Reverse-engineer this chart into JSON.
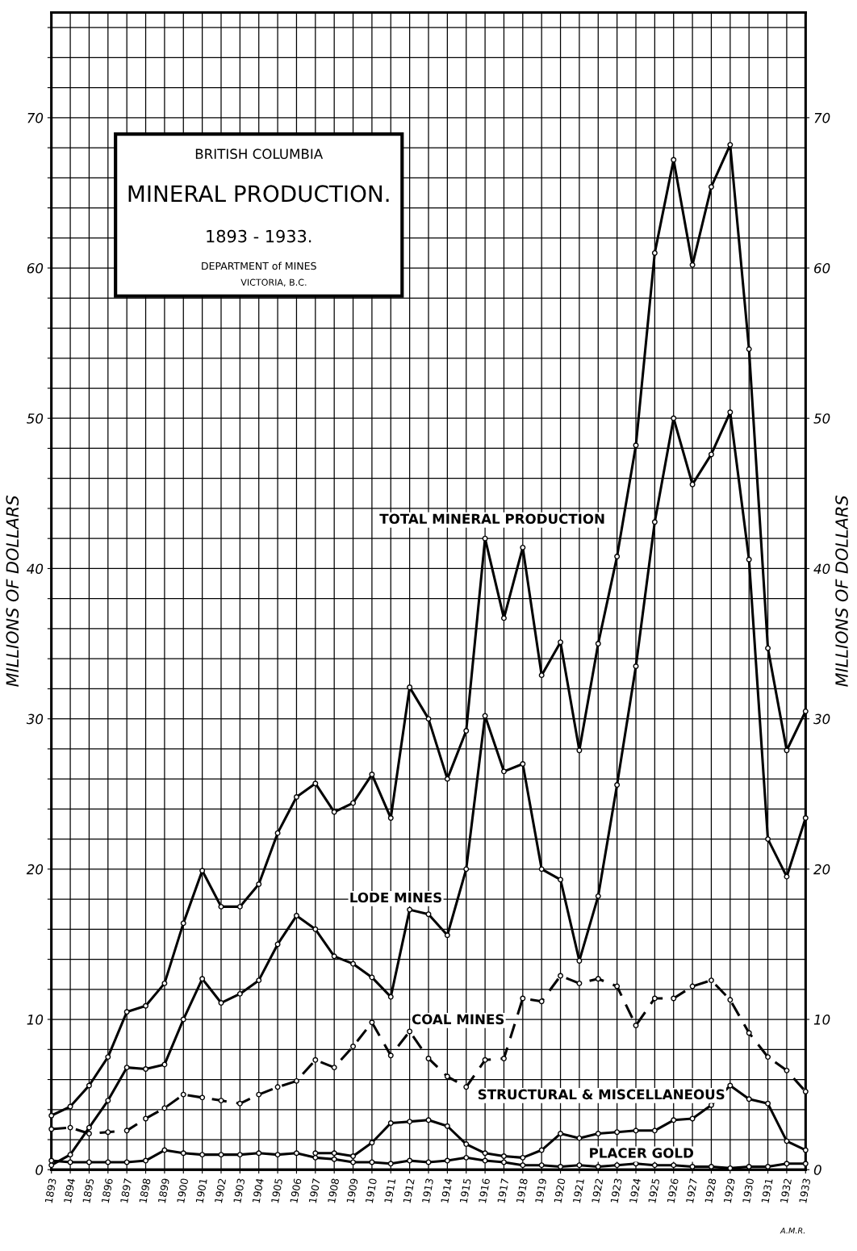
{
  "chart_data": {
    "type": "line",
    "subtitle": "BRITISH COLUMBIA",
    "title": "MINERAL PRODUCTION.",
    "annotations": [
      "1893 - 1933.",
      "DEPARTMENT of MINES",
      "VICTORIA, B.C.",
      "A.M.R."
    ],
    "ylabel": "MILLIONS OF DOLLARS",
    "y2label": "MILLIONS OF DOLLARS",
    "x": [
      1893,
      1894,
      1895,
      1896,
      1897,
      1898,
      1899,
      1900,
      1901,
      1902,
      1903,
      1904,
      1905,
      1906,
      1907,
      1908,
      1909,
      1910,
      1911,
      1912,
      1913,
      1914,
      1915,
      1916,
      1917,
      1918,
      1919,
      1920,
      1921,
      1922,
      1923,
      1924,
      1925,
      1926,
      1927,
      1928,
      1929,
      1930,
      1931,
      1932,
      1933
    ],
    "xlim": [
      1893,
      1933
    ],
    "xticks": [
      1893,
      1894,
      1895,
      1896,
      1897,
      1898,
      1899,
      1900,
      1901,
      1902,
      1903,
      1904,
      1905,
      1906,
      1907,
      1908,
      1909,
      1910,
      1911,
      1912,
      1913,
      1914,
      1915,
      1916,
      1917,
      1918,
      1919,
      1920,
      1921,
      1922,
      1923,
      1924,
      1925,
      1926,
      1927,
      1928,
      1929,
      1930,
      1931,
      1932,
      1933
    ],
    "ylim": [
      0,
      77
    ],
    "yticks": [
      0,
      {
        "value": 2,
        "label": null
      },
      {
        "value": 4,
        "label": null
      },
      {
        "value": 6,
        "label": null
      },
      {
        "value": 8,
        "label": null
      },
      10,
      {
        "value": 12,
        "label": null
      },
      {
        "value": 14,
        "label": null
      },
      {
        "value": 16,
        "label": null
      },
      {
        "value": 18,
        "label": null
      },
      20,
      {
        "value": 22,
        "label": null
      },
      {
        "value": 24,
        "label": null
      },
      {
        "value": 26,
        "label": null
      },
      {
        "value": 28,
        "label": null
      },
      30,
      {
        "value": 32,
        "label": null
      },
      {
        "value": 34,
        "label": null
      },
      {
        "value": 36,
        "label": null
      },
      {
        "value": 38,
        "label": null
      },
      40,
      {
        "value": 42,
        "label": null
      },
      {
        "value": 44,
        "label": null
      },
      {
        "value": 46,
        "label": null
      },
      {
        "value": 48,
        "label": null
      },
      50,
      {
        "value": 52,
        "label": null
      },
      {
        "value": 54,
        "label": null
      },
      {
        "value": 56,
        "label": null
      },
      {
        "value": 58,
        "label": null
      },
      60,
      {
        "value": 62,
        "label": null
      },
      {
        "value": 64,
        "label": null
      },
      {
        "value": 66,
        "label": null
      },
      {
        "value": 68,
        "label": null
      },
      70,
      {
        "value": 72,
        "label": null
      },
      {
        "value": 74,
        "label": null
      },
      {
        "value": 76,
        "label": null
      }
    ],
    "y2lim": [
      0,
      77
    ],
    "y2ticks": [
      0,
      10,
      20,
      30,
      40,
      50,
      60,
      70
    ],
    "grid": true,
    "marker": "circle",
    "legend": false,
    "series": [
      {
        "name": "TOTAL MINERAL PRODUCTION",
        "color": "#000000",
        "line_style": "solid",
        "values": [
          3.6,
          4.2,
          5.6,
          7.5,
          10.5,
          10.9,
          12.4,
          16.4,
          19.9,
          17.5,
          17.5,
          19.0,
          22.4,
          24.8,
          25.7,
          23.8,
          24.4,
          26.3,
          23.4,
          32.1,
          30.0,
          26.0,
          29.2,
          42.0,
          36.7,
          41.4,
          32.9,
          35.1,
          27.9,
          35.0,
          40.8,
          48.2,
          61.0,
          67.2,
          60.2,
          65.4,
          68.2,
          54.6,
          34.7,
          27.9,
          30.5
        ]
      },
      {
        "name": "LODE MINES",
        "color": "#000000",
        "line_style": "solid",
        "values": [
          0.3,
          1.0,
          2.8,
          4.6,
          6.8,
          6.7,
          7.0,
          10.0,
          12.7,
          11.1,
          11.7,
          12.6,
          15.0,
          16.9,
          16.0,
          14.2,
          13.7,
          12.8,
          11.5,
          17.3,
          17.0,
          15.6,
          20.0,
          30.2,
          26.5,
          27.0,
          20.0,
          19.3,
          13.9,
          18.2,
          25.6,
          33.5,
          43.1,
          50.0,
          45.6,
          47.6,
          50.4,
          40.6,
          22.0,
          19.5,
          23.4
        ]
      },
      {
        "name": "COAL MINES",
        "color": "#000000",
        "line_style": "dashed",
        "values": [
          2.7,
          2.8,
          2.4,
          2.5,
          2.6,
          3.4,
          4.1,
          5.0,
          4.8,
          4.6,
          4.4,
          5.0,
          5.5,
          5.9,
          7.3,
          6.8,
          8.2,
          9.8,
          7.6,
          9.2,
          7.4,
          6.2,
          5.5,
          7.3,
          7.4,
          11.4,
          11.2,
          12.9,
          12.4,
          12.7,
          12.2,
          9.6,
          11.4,
          11.4,
          12.2,
          12.6,
          11.3,
          9.1,
          7.5,
          6.6,
          5.2
        ]
      },
      {
        "name": "STRUCTURAL & MISCELLANEOUS",
        "color": "#000000",
        "line_style": "solid",
        "values": [
          null,
          null,
          null,
          null,
          null,
          null,
          null,
          null,
          null,
          null,
          null,
          null,
          null,
          null,
          1.1,
          1.1,
          0.9,
          1.8,
          3.1,
          3.2,
          3.3,
          2.9,
          1.7,
          1.1,
          0.9,
          0.8,
          1.3,
          2.4,
          2.1,
          2.4,
          2.5,
          2.6,
          2.6,
          3.3,
          3.4,
          4.3,
          5.6,
          4.7,
          4.4,
          1.9,
          1.3
        ]
      },
      {
        "name": "PLACER GOLD",
        "color": "#000000",
        "line_style": "solid",
        "values": [
          0.6,
          0.5,
          0.5,
          0.5,
          0.5,
          0.6,
          1.3,
          1.1,
          1.0,
          1.0,
          1.0,
          1.1,
          1.0,
          1.1,
          0.8,
          0.7,
          0.5,
          0.5,
          0.4,
          0.6,
          0.5,
          0.6,
          0.8,
          0.6,
          0.5,
          0.3,
          0.3,
          0.2,
          0.3,
          0.2,
          0.3,
          0.4,
          0.3,
          0.3,
          0.2,
          0.2,
          0.1,
          0.2,
          0.2,
          0.4,
          0.4
        ]
      }
    ]
  }
}
